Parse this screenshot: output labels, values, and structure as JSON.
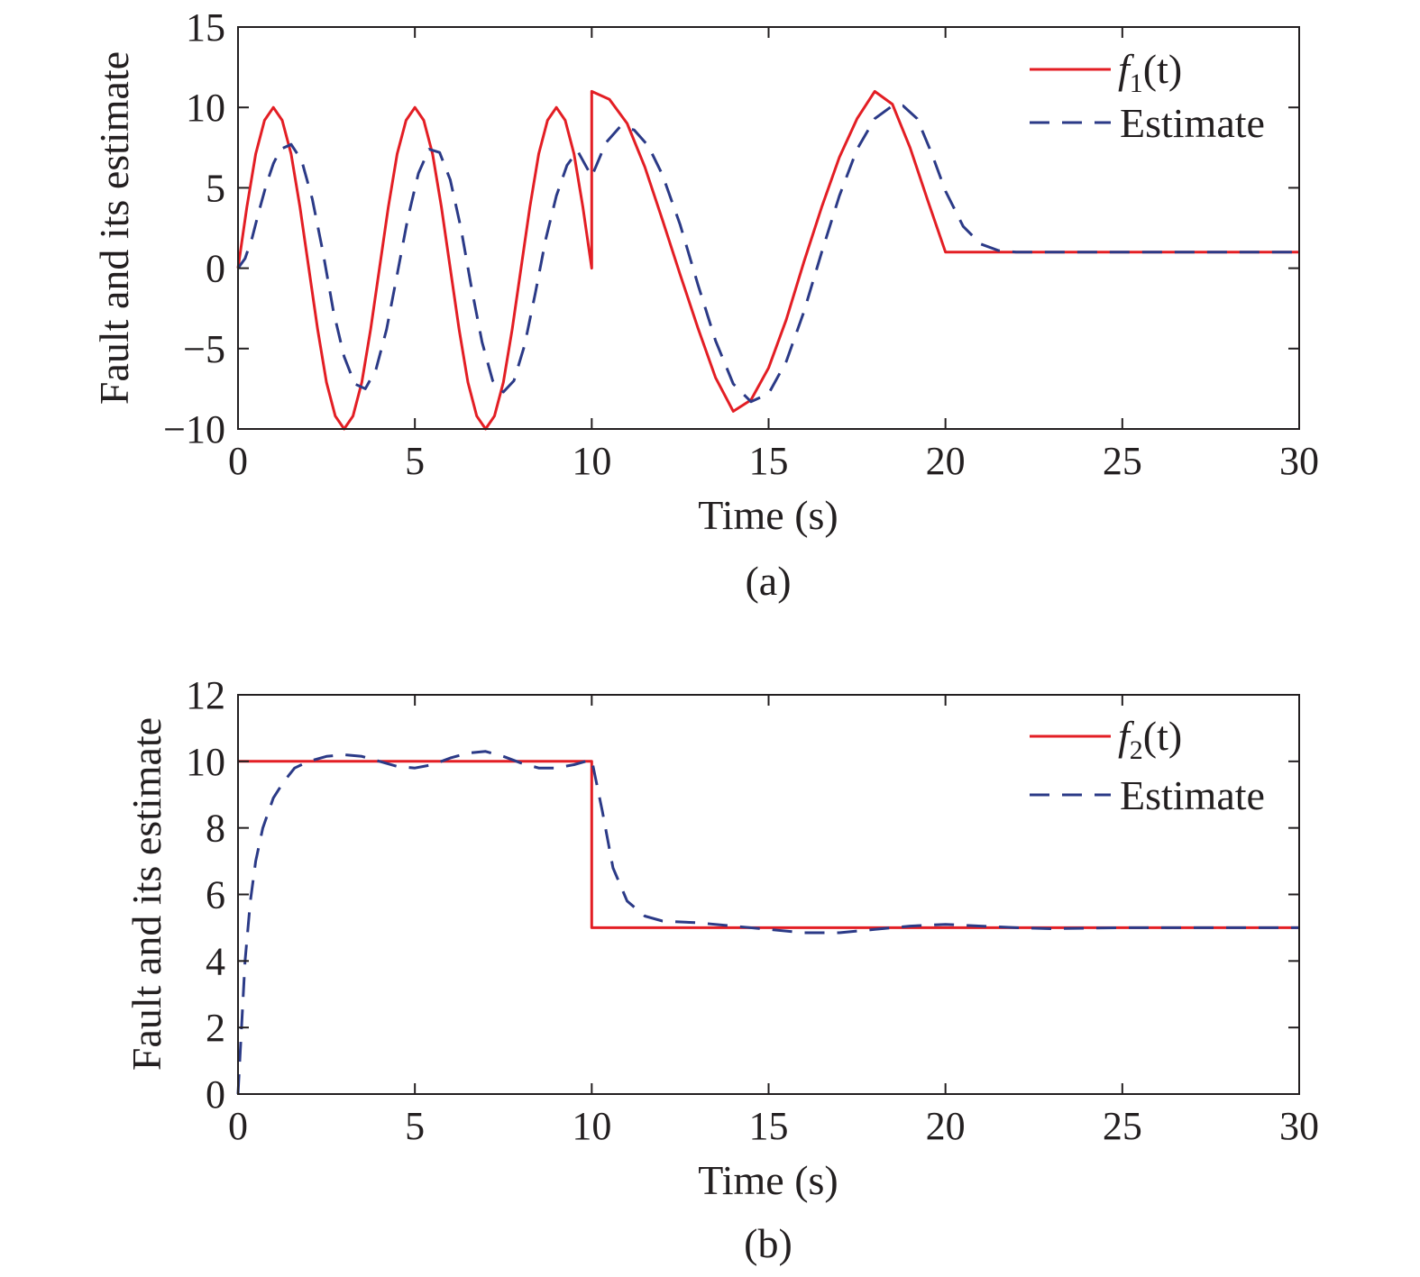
{
  "figure": {
    "panels": [
      {
        "caption": "(a)",
        "legend": [
          {
            "symbol": "f",
            "sub": "1",
            "arg": "(t)"
          },
          {
            "label": "Estimate"
          }
        ]
      },
      {
        "caption": "(b)",
        "legend": [
          {
            "symbol": "f",
            "sub": "2",
            "arg": "(t)"
          },
          {
            "label": "Estimate"
          }
        ]
      }
    ]
  },
  "chart_data": [
    {
      "type": "line",
      "xlabel": "Time (s)",
      "ylabel": "Fault and its estimate",
      "xlim": [
        0,
        30
      ],
      "ylim": [
        -10,
        15
      ],
      "xticks": [
        0,
        5,
        10,
        15,
        20,
        25,
        30
      ],
      "yticks": [
        -10,
        -5,
        0,
        5,
        10,
        15
      ],
      "xtick_labels": [
        "0",
        "5",
        "10",
        "15",
        "20",
        "25",
        "30"
      ],
      "ytick_labels": [
        "−10",
        "−5",
        "0",
        "5",
        "10",
        "15"
      ],
      "grid": false,
      "legend_position": "top-right",
      "colors": {
        "fault": "#e31e24",
        "estimate": "#2b3a87"
      },
      "series": [
        {
          "name": "f1(t)",
          "style": "solid",
          "x": [
            0,
            0.25,
            0.5,
            0.75,
            1,
            1.25,
            1.5,
            1.75,
            2,
            2.25,
            2.5,
            2.75,
            3,
            3.25,
            3.5,
            3.75,
            4,
            4.25,
            4.5,
            4.75,
            5,
            5.25,
            5.5,
            5.75,
            6,
            6.25,
            6.5,
            6.75,
            7,
            7.25,
            7.5,
            7.75,
            8,
            8.25,
            8.5,
            8.75,
            9,
            9.25,
            9.5,
            9.75,
            10,
            10,
            10.5,
            11,
            11.5,
            12,
            12.5,
            13,
            13.5,
            14,
            14.5,
            15,
            15.5,
            16,
            16.5,
            17,
            17.5,
            18,
            18.5,
            19,
            19.5,
            20,
            21,
            22,
            24,
            26,
            28,
            30
          ],
          "y": [
            0,
            3.8,
            7.1,
            9.2,
            10,
            9.2,
            7.1,
            3.8,
            0,
            -3.8,
            -7.1,
            -9.2,
            -10,
            -9.2,
            -7.1,
            -3.8,
            0,
            3.8,
            7.1,
            9.2,
            10,
            9.2,
            7.1,
            3.8,
            0,
            -3.8,
            -7.1,
            -9.2,
            -10,
            -9.2,
            -7.1,
            -3.8,
            0,
            3.8,
            7.1,
            9.2,
            10,
            9.2,
            7.1,
            3.8,
            0,
            11,
            10.5,
            9,
            6.3,
            3,
            -0.4,
            -3.7,
            -6.8,
            -8.9,
            -8.2,
            -6.2,
            -3.2,
            0.4,
            3.8,
            6.9,
            9.3,
            11,
            10.2,
            7.5,
            4.2,
            1,
            1,
            1,
            1,
            1,
            1,
            1
          ]
        },
        {
          "name": "Estimate",
          "style": "dashed",
          "x": [
            0,
            0.2,
            0.4,
            0.6,
            0.8,
            1,
            1.2,
            1.5,
            1.8,
            2.1,
            2.4,
            2.7,
            3,
            3.3,
            3.6,
            3.9,
            4.2,
            4.5,
            4.8,
            5.1,
            5.4,
            5.7,
            6,
            6.3,
            6.6,
            6.9,
            7.2,
            7.5,
            7.8,
            8.1,
            8.4,
            8.7,
            9,
            9.3,
            9.6,
            10,
            10.4,
            10.8,
            11.2,
            11.6,
            12,
            12.5,
            13,
            13.5,
            14,
            14.5,
            15,
            15.5,
            16,
            16.5,
            17,
            17.5,
            18,
            18.5,
            18.8,
            19.2,
            19.6,
            20,
            20.5,
            21,
            21.5,
            22,
            23,
            24,
            26,
            28,
            30
          ],
          "y": [
            0,
            0.6,
            1.9,
            3.6,
            5.2,
            6.5,
            7.4,
            7.7,
            6.7,
            4.3,
            1,
            -2.7,
            -5.5,
            -7.2,
            -7.5,
            -6.3,
            -3.8,
            -0.4,
            3.1,
            5.9,
            7.4,
            7.2,
            5.5,
            2.5,
            -1.2,
            -4.6,
            -7,
            -7.7,
            -7,
            -4.8,
            -1.6,
            1.8,
            4.5,
            6.4,
            7.3,
            5.7,
            7.8,
            8.8,
            8.6,
            7.6,
            5.8,
            2.7,
            -1,
            -4.5,
            -7.2,
            -8.3,
            -7.8,
            -5.8,
            -2.7,
            1,
            4.5,
            7.4,
            9.3,
            10.1,
            10.1,
            9.3,
            7.2,
            4.8,
            2.6,
            1.5,
            1.1,
            1,
            1,
            1,
            1,
            1,
            1
          ]
        }
      ]
    },
    {
      "type": "line",
      "xlabel": "Time (s)",
      "ylabel": "Fault and its estimate",
      "xlim": [
        0,
        30
      ],
      "ylim": [
        0,
        12
      ],
      "xticks": [
        0,
        5,
        10,
        15,
        20,
        25,
        30
      ],
      "yticks": [
        0,
        2,
        4,
        6,
        8,
        10,
        12
      ],
      "xtick_labels": [
        "0",
        "5",
        "10",
        "15",
        "20",
        "25",
        "30"
      ],
      "ytick_labels": [
        "0",
        "2",
        "4",
        "6",
        "8",
        "10",
        "12"
      ],
      "grid": false,
      "legend_position": "top-right",
      "colors": {
        "fault": "#e31e24",
        "estimate": "#2b3a87"
      },
      "series": [
        {
          "name": "f2(t)",
          "style": "solid",
          "x": [
            0,
            10,
            10,
            30
          ],
          "y": [
            10,
            10,
            5,
            5
          ]
        },
        {
          "name": "Estimate",
          "style": "dashed",
          "x": [
            0,
            0.1,
            0.2,
            0.35,
            0.5,
            0.7,
            1,
            1.3,
            1.6,
            2,
            2.5,
            3,
            3.5,
            4,
            4.5,
            5,
            5.5,
            6,
            6.5,
            7,
            7.5,
            8,
            8.5,
            9,
            9.5,
            10,
            10.3,
            10.6,
            11,
            11.5,
            12,
            13,
            14,
            15,
            16,
            17,
            18,
            19,
            20,
            21,
            22,
            23,
            25,
            27,
            30
          ],
          "y": [
            0,
            2,
            4,
            5.8,
            7,
            8,
            8.9,
            9.4,
            9.8,
            10,
            10.15,
            10.2,
            10.15,
            10,
            9.85,
            9.8,
            9.9,
            10.1,
            10.25,
            10.3,
            10.15,
            9.95,
            9.8,
            9.8,
            9.9,
            10.05,
            8.5,
            6.8,
            5.8,
            5.35,
            5.2,
            5.15,
            5.05,
            4.95,
            4.85,
            4.85,
            4.95,
            5.05,
            5.1,
            5.05,
            5,
            4.97,
            5,
            5,
            5
          ]
        }
      ]
    }
  ]
}
